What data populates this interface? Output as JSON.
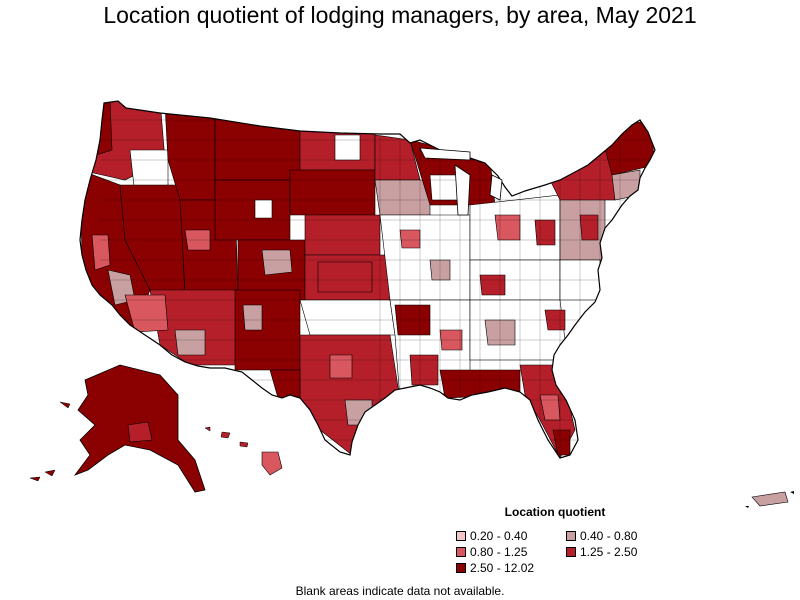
{
  "title": "Location quotient of lodging managers, by area, May 2021",
  "legend": {
    "title": "Location quotient",
    "items": [
      {
        "label": "0.20 - 0.40",
        "color": "#f4c6c8"
      },
      {
        "label": "0.40 - 0.80",
        "color": "#c9a0a2"
      },
      {
        "label": "0.80 - 1.25",
        "color": "#d9575f"
      },
      {
        "label": "1.25 - 2.50",
        "color": "#b51f2a"
      },
      {
        "label": "2.50 - 12.02",
        "color": "#8b0000"
      }
    ]
  },
  "footnote": "Blank areas indicate data not available.",
  "colors": {
    "q1": "#f4c6c8",
    "q2": "#c9a0a2",
    "q3": "#d9575f",
    "q4": "#b51f2a",
    "q5": "#8b0000",
    "blank": "#ffffff",
    "border": "#000000"
  }
}
